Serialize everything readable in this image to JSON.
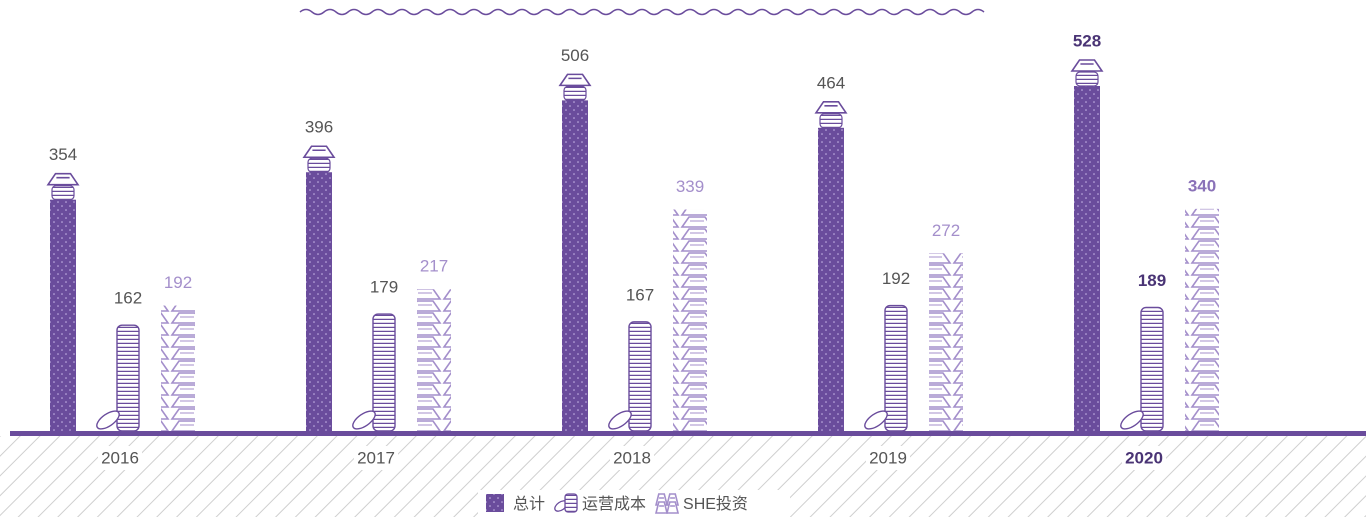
{
  "chart_data": {
    "type": "bar",
    "categories": [
      "2016",
      "2017",
      "2018",
      "2019",
      "2020"
    ],
    "series": [
      {
        "name": "总计",
        "color": "#6a4c9c",
        "values": [
          354,
          396,
          506,
          464,
          528
        ]
      },
      {
        "name": "运营成本",
        "color": "#6a4c9c",
        "values": [
          162,
          179,
          167,
          192,
          189
        ]
      },
      {
        "name": "SHE投资",
        "color": "#a48fcb",
        "values": [
          192,
          217,
          339,
          272,
          340
        ]
      }
    ]
  }
}
